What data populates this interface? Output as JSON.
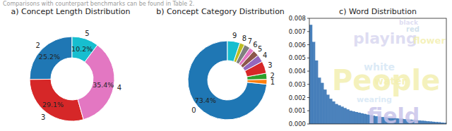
{
  "header_text": "Comparisons with counterpart benchmarks can be found in Table 2.",
  "chart_data": [
    {
      "type": "pie",
      "title": "a) Concept Length Distribution",
      "categories": [
        "2",
        "3",
        "4",
        "5"
      ],
      "values": [
        25.2,
        29.1,
        35.4,
        10.2
      ],
      "value_labels": [
        "25.2%",
        "29.1%",
        "35.4%",
        "10.2%"
      ],
      "colors": [
        "#1f77b4",
        "#d62728",
        "#e377c2",
        "#17becf"
      ],
      "data_labels": true
    },
    {
      "type": "pie",
      "title": "b) Concept Category Distribution",
      "categories": [
        "0",
        "1",
        "2",
        "3",
        "4",
        "5",
        "6",
        "7",
        "8",
        "9"
      ],
      "values": [
        73.4,
        2.0,
        2.5,
        5.0,
        3.0,
        2.5,
        2.0,
        2.5,
        2.0,
        5.1
      ],
      "value_labels": [
        "73.4%",
        null,
        null,
        null,
        null,
        null,
        null,
        null,
        null,
        null
      ],
      "colors": [
        "#1f77b4",
        "#ff7f0e",
        "#2ca02c",
        "#d62728",
        "#9467bd",
        "#8c564b",
        "#e377c2",
        "#7f7f7f",
        "#bcbd22",
        "#17becf"
      ],
      "data_labels": true
    },
    {
      "type": "bar",
      "title": "c) Word Distribution",
      "values": [
        0.0075,
        0.0062,
        0.0048,
        0.0035,
        0.0031,
        0.0026,
        0.0022,
        0.0019,
        0.0017,
        0.0015,
        0.0014,
        0.0013,
        0.0012,
        0.0011,
        0.001,
        0.00095,
        0.0009,
        0.00085,
        0.0008,
        0.00075,
        0.0007,
        0.00066,
        0.00062,
        0.00058,
        0.00055,
        0.00052,
        0.0005,
        0.00048,
        0.00046,
        0.00044,
        0.00042,
        0.0004,
        0.00038,
        0.00036,
        0.00034,
        0.00032,
        0.0003,
        0.00028,
        0.00026,
        0.00024,
        0.00022,
        0.0002,
        0.00018,
        0.00016,
        0.00014,
        0.00012,
        0.0001,
        8e-05
      ],
      "color": "#2b6cb0",
      "ylim": [
        0,
        0.008
      ],
      "yticks": [
        {
          "value": 0,
          "label": "0.000"
        },
        {
          "value": 0.001,
          "label": "0.001"
        },
        {
          "value": 0.002,
          "label": "0.002"
        },
        {
          "value": 0.003,
          "label": "0.003"
        },
        {
          "value": 0.004,
          "label": "0.004"
        },
        {
          "value": 0.005,
          "label": "0.005"
        },
        {
          "value": 0.006,
          "label": "0.006"
        },
        {
          "value": 0.007,
          "label": "0.007"
        },
        {
          "value": 0.008,
          "label": "0.008"
        }
      ],
      "tick_labels": "y",
      "annotations": [
        {
          "text": "playing",
          "color": "#d9d7f0"
        },
        {
          "text": "People",
          "color": "#f3efb0"
        },
        {
          "text": "field",
          "color": "#c9c4ea"
        },
        {
          "text": "flower",
          "color": "#f3efb0"
        },
        {
          "text": "white",
          "color": "#d6e7f5"
        },
        {
          "text": "water",
          "color": "#f3efb0"
        },
        {
          "text": "red",
          "color": "#c9dcea"
        },
        {
          "text": "wearing",
          "color": "#d6e7f5"
        },
        {
          "text": "black",
          "color": "#d9d7f0"
        }
      ]
    }
  ]
}
